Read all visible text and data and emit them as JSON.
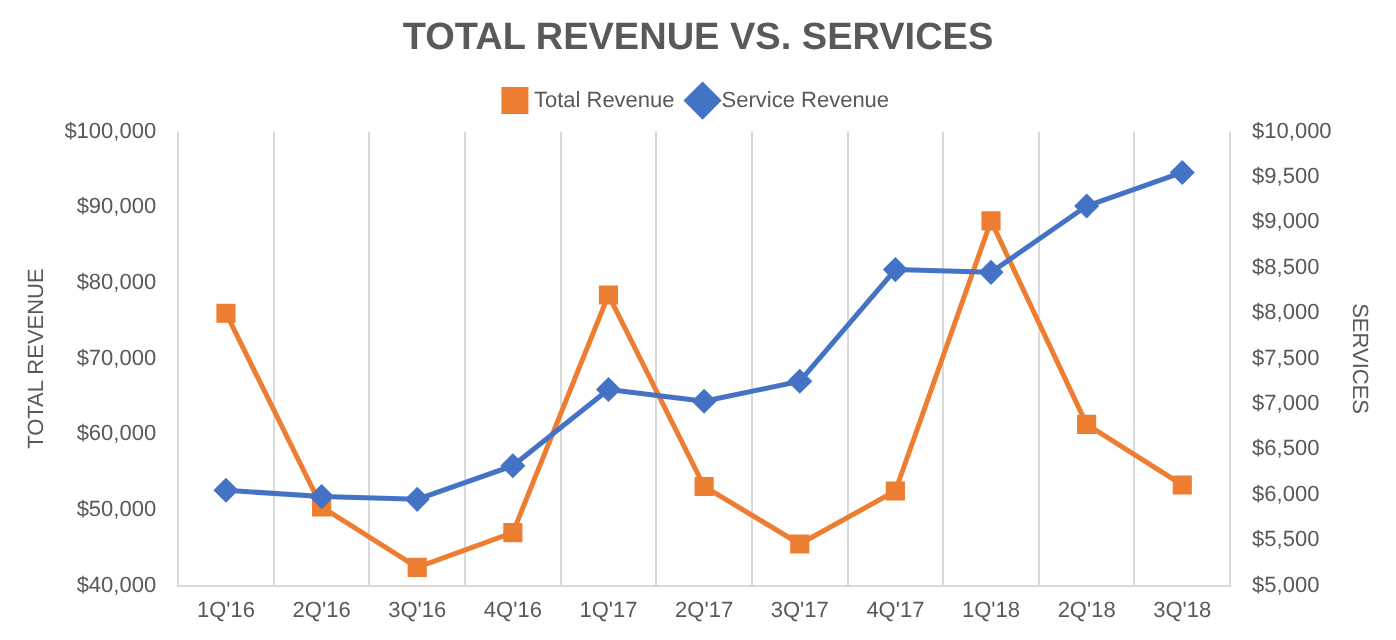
{
  "chart_data": {
    "type": "line",
    "title": "TOTAL REVENUE VS. SERVICES",
    "ylabel": "TOTAL REVENUE",
    "y2label": "SERVICES",
    "categories": [
      "1Q'16",
      "2Q'16",
      "3Q'16",
      "4Q'16",
      "1Q'17",
      "2Q'17",
      "3Q'17",
      "4Q'17",
      "1Q'18",
      "2Q'18",
      "3Q'18"
    ],
    "series": [
      {
        "name": "Total Revenue",
        "color": "#ed7d31",
        "marker": "square",
        "values": [
          76000,
          50400,
          42400,
          47000,
          78400,
          53100,
          45500,
          52500,
          88200,
          61300,
          53300
        ]
      },
      {
        "name": "Service Revenue",
        "color": "#4472c4",
        "marker": "diamond",
        "axis": "y2",
        "values": [
          6050,
          5980,
          5950,
          6320,
          7160,
          7030,
          7250,
          8480,
          8450,
          9180,
          9550
        ]
      }
    ],
    "ylim": [
      40000,
      100000
    ],
    "yticks": [
      {
        "value": 40000,
        "label": "$40,000"
      },
      {
        "value": 50000,
        "label": "$50,000"
      },
      {
        "value": 60000,
        "label": "$60,000"
      },
      {
        "value": 70000,
        "label": "$70,000"
      },
      {
        "value": 80000,
        "label": "$80,000"
      },
      {
        "value": 90000,
        "label": "$90,000"
      },
      {
        "value": 100000,
        "label": "$100,000"
      }
    ],
    "y2lim": [
      5000,
      10000
    ],
    "y2ticks": [
      {
        "value": 5000,
        "label": "$5,000"
      },
      {
        "value": 5500,
        "label": "$5,500"
      },
      {
        "value": 6000,
        "label": "$6,000"
      },
      {
        "value": 6500,
        "label": "$6,500"
      },
      {
        "value": 7000,
        "label": "$7,000"
      },
      {
        "value": 7500,
        "label": "$7,500"
      },
      {
        "value": 8000,
        "label": "$8,000"
      },
      {
        "value": 8500,
        "label": "$8,500"
      },
      {
        "value": 9000,
        "label": "$9,000"
      },
      {
        "value": 9500,
        "label": "$9,500"
      },
      {
        "value": 10000,
        "label": "$10,000"
      }
    ],
    "grid": "x",
    "legend": "top",
    "line_style": "solid"
  }
}
